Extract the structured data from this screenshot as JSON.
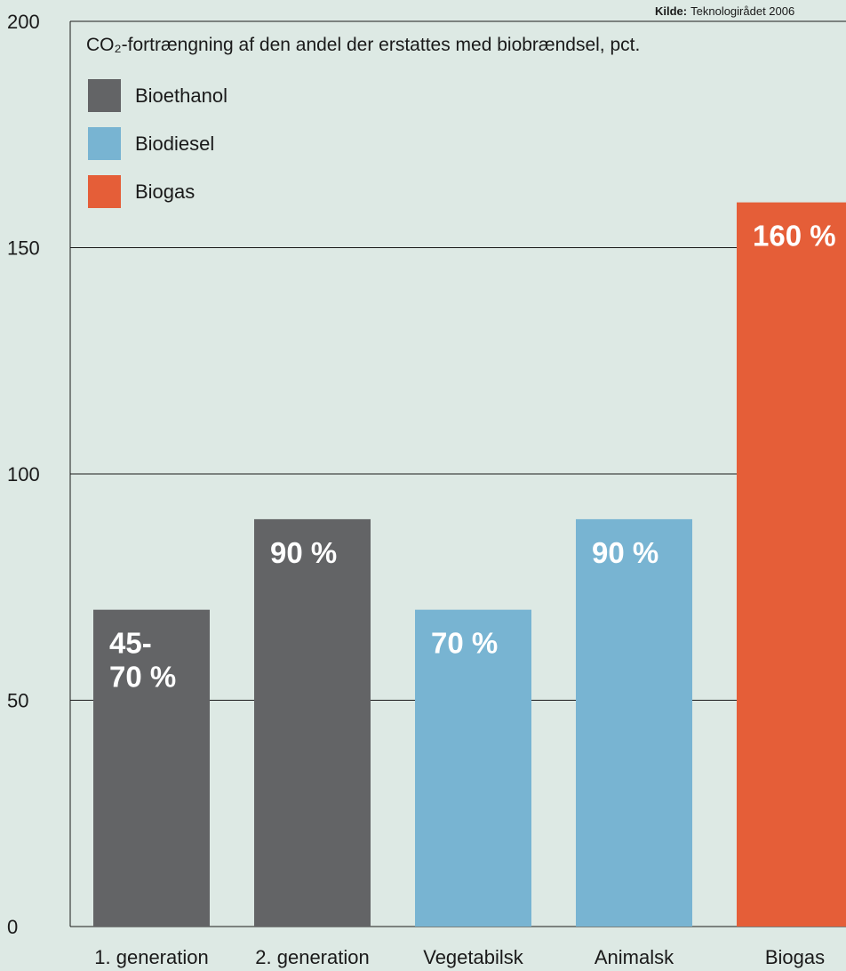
{
  "source": {
    "label": "Kilde:",
    "text": "Teknologirådet 2006"
  },
  "colors": {
    "background": "#dde9e4",
    "gridline": "#1a1a1a",
    "bioethanol": "#636466",
    "biodiesel": "#78b4d2",
    "biogas": "#e55e38",
    "value_label": "#ffffff"
  },
  "chart_data": {
    "type": "bar",
    "title": "CO₂-fortrængning af den andel der erstattes med biobrændsel, pct.",
    "xlabel": "",
    "ylabel": "",
    "ylim": [
      0,
      200
    ],
    "yticks": [
      "0",
      "50",
      "100",
      "150",
      "200"
    ],
    "grid": true,
    "legend_position": "top-left",
    "legend": [
      {
        "name": "Bioethanol",
        "color": "#636466"
      },
      {
        "name": "Biodiesel",
        "color": "#78b4d2"
      },
      {
        "name": "Biogas",
        "color": "#e55e38"
      }
    ],
    "categories": [
      "1. generation",
      "2. generation",
      "Vegetabilsk",
      "Animalsk",
      "Biogas"
    ],
    "values": [
      70,
      90,
      70,
      90,
      160
    ],
    "bar_series": [
      "Bioethanol",
      "Bioethanol",
      "Biodiesel",
      "Biodiesel",
      "Biogas"
    ],
    "value_labels": [
      [
        "45-",
        "70 %"
      ],
      [
        "90 %"
      ],
      [
        "70 %"
      ],
      [
        "90 %"
      ],
      [
        "160 %"
      ]
    ]
  }
}
